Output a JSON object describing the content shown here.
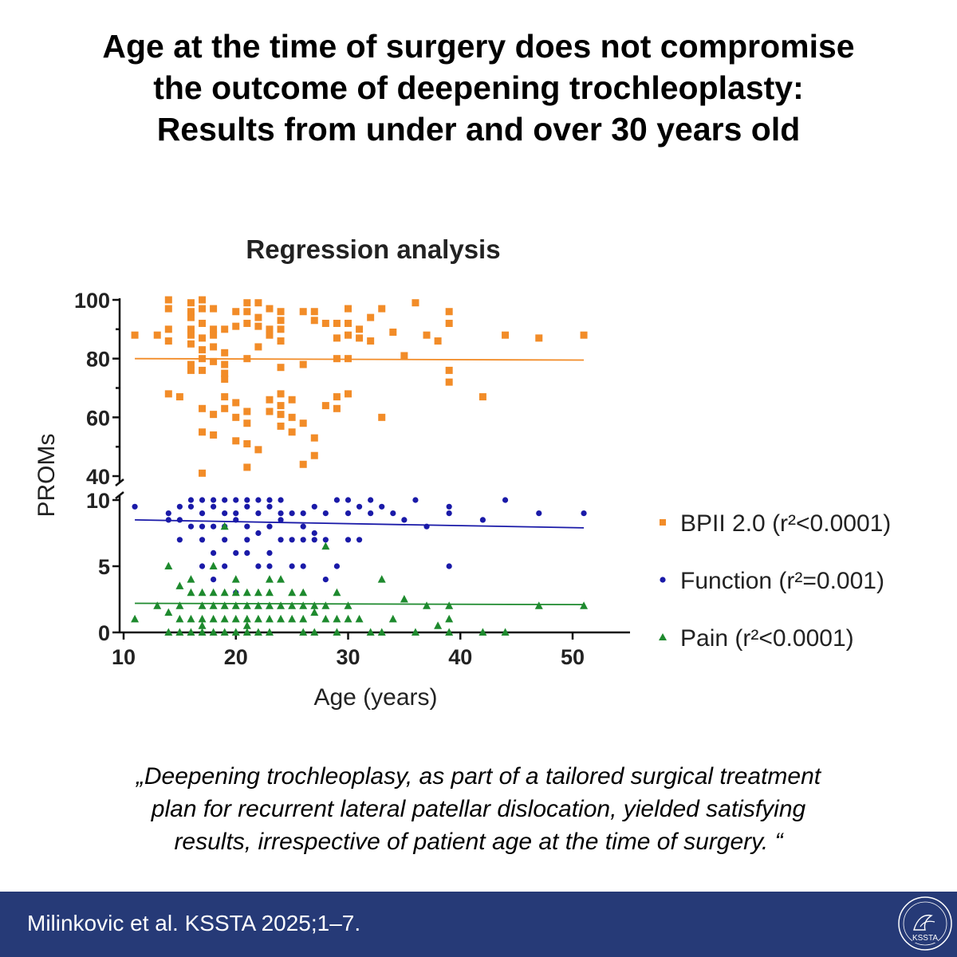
{
  "header": {
    "lines": [
      "Age at the time of surgery does not compromise",
      "the outcome of deepening trochleoplasty:",
      "Results from under and over 30 years old"
    ]
  },
  "quote": {
    "lines": [
      "„Deepening trochleoplasy, as part of a tailored surgical treatment",
      "plan for recurrent lateral patellar dislocation, yielded satisfying",
      "results, irrespective of patient age at the time of surgery. “"
    ]
  },
  "footer": {
    "citation": "Milinkovic et al. KSSTA 2025;1–7.",
    "logo_text": "KSSTA",
    "background": "#263a77"
  },
  "chart_data": {
    "type": "scatter",
    "title": "Regression analysis",
    "xlabel": "Age (years)",
    "ylabel": "PROMs",
    "xlim": [
      10,
      55
    ],
    "xticks": [
      10,
      20,
      30,
      40,
      50
    ],
    "axis_break": true,
    "upper_panel": {
      "ylim": [
        40,
        100
      ],
      "yticks": [
        40,
        60,
        80,
        100
      ]
    },
    "lower_panel": {
      "ylim": [
        0,
        10
      ],
      "yticks": [
        0,
        5,
        10
      ]
    },
    "legend_position": "right",
    "series": [
      {
        "name": "BPII 2.0",
        "stat": "(r²<0.0001)",
        "panel": "upper",
        "marker": "square",
        "color": "#f28c28",
        "trend": [
          [
            11,
            80
          ],
          [
            51,
            79.5
          ]
        ],
        "points": [
          [
            11,
            88
          ],
          [
            13,
            88
          ],
          [
            14,
            100
          ],
          [
            14,
            97
          ],
          [
            14,
            90
          ],
          [
            14,
            86
          ],
          [
            14,
            68
          ],
          [
            15,
            67
          ],
          [
            16,
            99
          ],
          [
            16,
            96
          ],
          [
            16,
            94
          ],
          [
            16,
            90
          ],
          [
            16,
            88
          ],
          [
            16,
            85
          ],
          [
            16,
            78
          ],
          [
            16,
            76
          ],
          [
            17,
            100
          ],
          [
            17,
            97
          ],
          [
            17,
            92
          ],
          [
            17,
            87
          ],
          [
            17,
            83
          ],
          [
            17,
            80
          ],
          [
            17,
            76
          ],
          [
            17,
            63
          ],
          [
            17,
            55
          ],
          [
            17,
            41
          ],
          [
            18,
            97
          ],
          [
            18,
            90
          ],
          [
            18,
            88
          ],
          [
            18,
            84
          ],
          [
            18,
            79
          ],
          [
            18,
            61
          ],
          [
            18,
            54
          ],
          [
            19,
            90
          ],
          [
            19,
            82
          ],
          [
            19,
            78
          ],
          [
            19,
            75
          ],
          [
            19,
            73
          ],
          [
            19,
            67
          ],
          [
            19,
            63
          ],
          [
            20,
            96
          ],
          [
            20,
            91
          ],
          [
            20,
            65
          ],
          [
            20,
            60
          ],
          [
            20,
            52
          ],
          [
            21,
            99
          ],
          [
            21,
            96
          ],
          [
            21,
            92
          ],
          [
            21,
            80
          ],
          [
            21,
            62
          ],
          [
            21,
            58
          ],
          [
            21,
            51
          ],
          [
            21,
            43
          ],
          [
            22,
            99
          ],
          [
            22,
            94
          ],
          [
            22,
            91
          ],
          [
            22,
            84
          ],
          [
            22,
            49
          ],
          [
            23,
            97
          ],
          [
            23,
            90
          ],
          [
            23,
            88
          ],
          [
            23,
            66
          ],
          [
            23,
            62
          ],
          [
            24,
            96
          ],
          [
            24,
            93
          ],
          [
            24,
            90
          ],
          [
            24,
            86
          ],
          [
            24,
            68
          ],
          [
            24,
            64
          ],
          [
            24,
            61
          ],
          [
            24,
            57
          ],
          [
            24,
            77
          ],
          [
            25,
            60
          ],
          [
            25,
            55
          ],
          [
            25,
            66
          ],
          [
            26,
            96
          ],
          [
            26,
            78
          ],
          [
            26,
            58
          ],
          [
            26,
            44
          ],
          [
            27,
            96
          ],
          [
            27,
            93
          ],
          [
            27,
            53
          ],
          [
            27,
            47
          ],
          [
            28,
            92
          ],
          [
            28,
            64
          ],
          [
            29,
            92
          ],
          [
            29,
            87
          ],
          [
            29,
            80
          ],
          [
            29,
            67
          ],
          [
            29,
            63
          ],
          [
            30,
            97
          ],
          [
            30,
            92
          ],
          [
            30,
            88
          ],
          [
            30,
            80
          ],
          [
            30,
            68
          ],
          [
            31,
            90
          ],
          [
            31,
            87
          ],
          [
            32,
            94
          ],
          [
            32,
            86
          ],
          [
            33,
            97
          ],
          [
            33,
            60
          ],
          [
            34,
            89
          ],
          [
            35,
            81
          ],
          [
            36,
            99
          ],
          [
            37,
            88
          ],
          [
            38,
            86
          ],
          [
            39,
            96
          ],
          [
            39,
            92
          ],
          [
            39,
            76
          ],
          [
            39,
            72
          ],
          [
            42,
            67
          ],
          [
            44,
            88
          ],
          [
            47,
            87
          ],
          [
            51,
            88
          ]
        ]
      },
      {
        "name": "Function",
        "stat": "(r²=0.001)",
        "panel": "lower",
        "marker": "circle",
        "color": "#1a1aa8",
        "trend": [
          [
            11,
            8.5
          ],
          [
            51,
            7.9
          ]
        ],
        "points": [
          [
            11,
            9.5
          ],
          [
            14,
            9
          ],
          [
            14,
            8.5
          ],
          [
            15,
            9.5
          ],
          [
            15,
            8.5
          ],
          [
            15,
            7
          ],
          [
            16,
            10
          ],
          [
            16,
            9.5
          ],
          [
            16,
            8
          ],
          [
            17,
            10
          ],
          [
            17,
            9
          ],
          [
            17,
            8
          ],
          [
            17,
            7
          ],
          [
            17,
            5
          ],
          [
            18,
            10
          ],
          [
            18,
            9.5
          ],
          [
            18,
            8
          ],
          [
            18,
            6
          ],
          [
            18,
            4
          ],
          [
            19,
            10
          ],
          [
            19,
            9
          ],
          [
            19,
            8
          ],
          [
            19,
            7
          ],
          [
            19,
            5
          ],
          [
            20,
            10
          ],
          [
            20,
            9
          ],
          [
            20,
            8.5
          ],
          [
            20,
            6
          ],
          [
            20,
            3
          ],
          [
            21,
            10
          ],
          [
            21,
            9.5
          ],
          [
            21,
            8
          ],
          [
            21,
            7
          ],
          [
            21,
            6
          ],
          [
            22,
            10
          ],
          [
            22,
            9
          ],
          [
            22,
            7.5
          ],
          [
            22,
            5
          ],
          [
            23,
            10
          ],
          [
            23,
            9.5
          ],
          [
            23,
            8
          ],
          [
            23,
            6
          ],
          [
            23,
            5
          ],
          [
            24,
            10
          ],
          [
            24,
            9
          ],
          [
            24,
            8.5
          ],
          [
            24,
            7
          ],
          [
            25,
            9
          ],
          [
            25,
            7
          ],
          [
            25,
            5
          ],
          [
            26,
            9
          ],
          [
            26,
            8
          ],
          [
            26,
            7
          ],
          [
            26,
            5
          ],
          [
            27,
            9.5
          ],
          [
            27,
            7.5
          ],
          [
            27,
            7
          ],
          [
            28,
            9
          ],
          [
            28,
            7
          ],
          [
            28,
            4
          ],
          [
            29,
            10
          ],
          [
            29,
            5
          ],
          [
            30,
            10
          ],
          [
            30,
            9
          ],
          [
            30,
            7
          ],
          [
            31,
            9.5
          ],
          [
            31,
            7
          ],
          [
            32,
            10
          ],
          [
            32,
            9
          ],
          [
            33,
            9.5
          ],
          [
            34,
            9
          ],
          [
            35,
            8.5
          ],
          [
            36,
            10
          ],
          [
            37,
            8
          ],
          [
            39,
            9.5
          ],
          [
            39,
            9
          ],
          [
            39,
            5
          ],
          [
            42,
            8.5
          ],
          [
            44,
            10
          ],
          [
            47,
            9
          ],
          [
            51,
            9
          ]
        ]
      },
      {
        "name": "Pain",
        "stat": "(r²<0.0001)",
        "panel": "lower",
        "marker": "triangle",
        "color": "#1e8a2e",
        "trend": [
          [
            11,
            2.2
          ],
          [
            51,
            2.1
          ]
        ],
        "points": [
          [
            11,
            1
          ],
          [
            13,
            2
          ],
          [
            14,
            5
          ],
          [
            14,
            1.5
          ],
          [
            14,
            0
          ],
          [
            15,
            3.5
          ],
          [
            15,
            2
          ],
          [
            15,
            1
          ],
          [
            15,
            0
          ],
          [
            16,
            4
          ],
          [
            16,
            3
          ],
          [
            16,
            1
          ],
          [
            16,
            0
          ],
          [
            17,
            3
          ],
          [
            17,
            2
          ],
          [
            17,
            1
          ],
          [
            17,
            0.5
          ],
          [
            17,
            0
          ],
          [
            18,
            5
          ],
          [
            18,
            3
          ],
          [
            18,
            2
          ],
          [
            18,
            1
          ],
          [
            18,
            0
          ],
          [
            19,
            8
          ],
          [
            19,
            3
          ],
          [
            19,
            2
          ],
          [
            19,
            1
          ],
          [
            19,
            0
          ],
          [
            20,
            4
          ],
          [
            20,
            3
          ],
          [
            20,
            2
          ],
          [
            20,
            1
          ],
          [
            20,
            0
          ],
          [
            21,
            3
          ],
          [
            21,
            2
          ],
          [
            21,
            1
          ],
          [
            21,
            0.5
          ],
          [
            21,
            0
          ],
          [
            22,
            3
          ],
          [
            22,
            2
          ],
          [
            22,
            1
          ],
          [
            22,
            0
          ],
          [
            23,
            4
          ],
          [
            23,
            3
          ],
          [
            23,
            2
          ],
          [
            23,
            1
          ],
          [
            23,
            0
          ],
          [
            24,
            4
          ],
          [
            24,
            2
          ],
          [
            24,
            1
          ],
          [
            25,
            3
          ],
          [
            25,
            2
          ],
          [
            25,
            1
          ],
          [
            26,
            3
          ],
          [
            26,
            2
          ],
          [
            26,
            1
          ],
          [
            26,
            0
          ],
          [
            27,
            2
          ],
          [
            27,
            1.5
          ],
          [
            27,
            0
          ],
          [
            28,
            6.5
          ],
          [
            28,
            2
          ],
          [
            28,
            1
          ],
          [
            29,
            3
          ],
          [
            29,
            1
          ],
          [
            29,
            0
          ],
          [
            30,
            2
          ],
          [
            30,
            1
          ],
          [
            31,
            1
          ],
          [
            32,
            0
          ],
          [
            33,
            4
          ],
          [
            33,
            0
          ],
          [
            34,
            1
          ],
          [
            35,
            2.5
          ],
          [
            36,
            0
          ],
          [
            37,
            2
          ],
          [
            38,
            0.5
          ],
          [
            39,
            2
          ],
          [
            39,
            1
          ],
          [
            39,
            0
          ],
          [
            42,
            0
          ],
          [
            44,
            0
          ],
          [
            47,
            2
          ],
          [
            51,
            2
          ]
        ]
      }
    ]
  }
}
